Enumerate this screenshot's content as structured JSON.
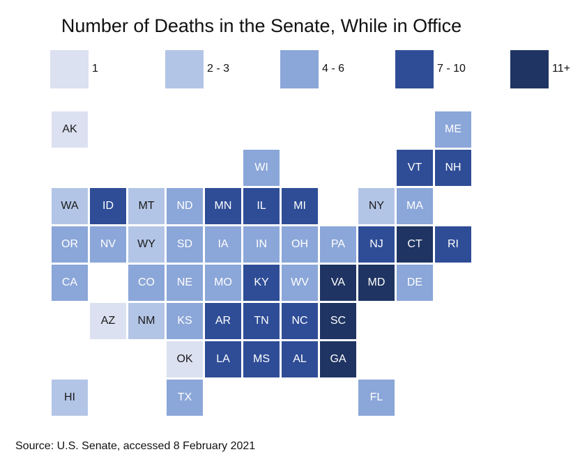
{
  "chart_data": {
    "type": "tile-map",
    "title": "Number of Deaths in the Senate, While in Office",
    "source": "Source: U.S. Senate, accessed 8 February 2021",
    "bins": [
      {
        "label": "1",
        "color": "#dce1f1"
      },
      {
        "label": "2 - 3",
        "color": "#b3c5e6"
      },
      {
        "label": "4 - 6",
        "color": "#8ba6d8"
      },
      {
        "label": "7 - 10",
        "color": "#2f4d96"
      },
      {
        "label": "11+",
        "color": "#1f3462"
      }
    ],
    "states": [
      {
        "code": "AK",
        "bin": 0,
        "col": 0,
        "row": 0
      },
      {
        "code": "ME",
        "bin": 2,
        "col": 10,
        "row": 0
      },
      {
        "code": "WI",
        "bin": 2,
        "col": 5,
        "row": 1
      },
      {
        "code": "VT",
        "bin": 3,
        "col": 9,
        "row": 1
      },
      {
        "code": "NH",
        "bin": 3,
        "col": 10,
        "row": 1
      },
      {
        "code": "WA",
        "bin": 1,
        "col": 0,
        "row": 2
      },
      {
        "code": "ID",
        "bin": 3,
        "col": 1,
        "row": 2
      },
      {
        "code": "MT",
        "bin": 1,
        "col": 2,
        "row": 2
      },
      {
        "code": "ND",
        "bin": 2,
        "col": 3,
        "row": 2
      },
      {
        "code": "MN",
        "bin": 3,
        "col": 4,
        "row": 2
      },
      {
        "code": "IL",
        "bin": 3,
        "col": 5,
        "row": 2
      },
      {
        "code": "MI",
        "bin": 3,
        "col": 6,
        "row": 2
      },
      {
        "code": "NY",
        "bin": 1,
        "col": 8,
        "row": 2
      },
      {
        "code": "MA",
        "bin": 2,
        "col": 9,
        "row": 2
      },
      {
        "code": "OR",
        "bin": 2,
        "col": 0,
        "row": 3
      },
      {
        "code": "NV",
        "bin": 2,
        "col": 1,
        "row": 3
      },
      {
        "code": "WY",
        "bin": 1,
        "col": 2,
        "row": 3
      },
      {
        "code": "SD",
        "bin": 2,
        "col": 3,
        "row": 3
      },
      {
        "code": "IA",
        "bin": 2,
        "col": 4,
        "row": 3
      },
      {
        "code": "IN",
        "bin": 2,
        "col": 5,
        "row": 3
      },
      {
        "code": "OH",
        "bin": 2,
        "col": 6,
        "row": 3
      },
      {
        "code": "PA",
        "bin": 2,
        "col": 7,
        "row": 3
      },
      {
        "code": "NJ",
        "bin": 3,
        "col": 8,
        "row": 3
      },
      {
        "code": "CT",
        "bin": 4,
        "col": 9,
        "row": 3
      },
      {
        "code": "RI",
        "bin": 3,
        "col": 10,
        "row": 3
      },
      {
        "code": "CA",
        "bin": 2,
        "col": 0,
        "row": 4
      },
      {
        "code": "CO",
        "bin": 2,
        "col": 2,
        "row": 4
      },
      {
        "code": "NE",
        "bin": 2,
        "col": 3,
        "row": 4
      },
      {
        "code": "MO",
        "bin": 2,
        "col": 4,
        "row": 4
      },
      {
        "code": "KY",
        "bin": 3,
        "col": 5,
        "row": 4
      },
      {
        "code": "WV",
        "bin": 2,
        "col": 6,
        "row": 4
      },
      {
        "code": "VA",
        "bin": 4,
        "col": 7,
        "row": 4
      },
      {
        "code": "MD",
        "bin": 4,
        "col": 8,
        "row": 4
      },
      {
        "code": "DE",
        "bin": 2,
        "col": 9,
        "row": 4
      },
      {
        "code": "AZ",
        "bin": 0,
        "col": 1,
        "row": 5
      },
      {
        "code": "NM",
        "bin": 1,
        "col": 2,
        "row": 5
      },
      {
        "code": "KS",
        "bin": 2,
        "col": 3,
        "row": 5
      },
      {
        "code": "AR",
        "bin": 3,
        "col": 4,
        "row": 5
      },
      {
        "code": "TN",
        "bin": 3,
        "col": 5,
        "row": 5
      },
      {
        "code": "NC",
        "bin": 3,
        "col": 6,
        "row": 5
      },
      {
        "code": "SC",
        "bin": 4,
        "col": 7,
        "row": 5
      },
      {
        "code": "OK",
        "bin": 0,
        "col": 3,
        "row": 6
      },
      {
        "code": "LA",
        "bin": 3,
        "col": 4,
        "row": 6
      },
      {
        "code": "MS",
        "bin": 3,
        "col": 5,
        "row": 6
      },
      {
        "code": "AL",
        "bin": 3,
        "col": 6,
        "row": 6
      },
      {
        "code": "GA",
        "bin": 4,
        "col": 7,
        "row": 6
      },
      {
        "code": "HI",
        "bin": 1,
        "col": 0,
        "row": 7
      },
      {
        "code": "TX",
        "bin": 2,
        "col": 3,
        "row": 7
      },
      {
        "code": "FL",
        "bin": 2,
        "col": 8,
        "row": 7
      }
    ]
  }
}
